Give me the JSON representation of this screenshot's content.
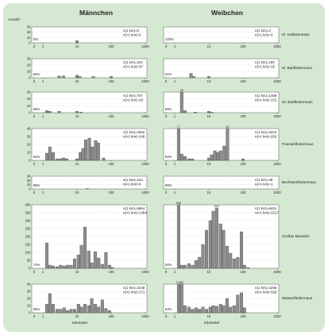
{
  "headers": {
    "male": "Männchen",
    "female": "Weibchen"
  },
  "ylabel": "Anzahl",
  "xlabel": "Kilometer",
  "chart_data": {
    "type": "bar",
    "xscale": "log",
    "xlim": [
      1,
      1000
    ],
    "xticks": [
      "0",
      "1",
      "10",
      "100",
      "1000"
    ],
    "species": [
      {
        "name": "Kl. Hufeisennase",
        "ylim": [
          0,
          30
        ],
        "yticks": [
          0,
          10,
          20,
          30
        ],
        "male": {
          "n1": "n(1 km)=0",
          "n2": "n(>1 km)=0",
          "zero_pct": "0%",
          "bars": [
            {
              "x": 10,
              "v": 4
            }
          ]
        },
        "female": {
          "n1": "n(1 km)=2",
          "n2": "n(>1 km)=0",
          "zero_pct": "100%",
          "bars": []
        }
      },
      {
        "name": "Kl. Bartfledermaus",
        "ylim": [
          0,
          30
        ],
        "yticks": [
          0,
          10,
          20,
          30
        ],
        "male": {
          "n1": "n(1 km)=222",
          "n2": "n(>1 km)=37",
          "zero_pct": "85%",
          "bars": [
            {
              "x": 3,
              "v": 3
            },
            {
              "x": 4,
              "v": 3
            },
            {
              "x": 10,
              "v": 4
            },
            {
              "x": 12,
              "v": 2
            },
            {
              "x": 30,
              "v": 2
            },
            {
              "x": 100,
              "v": 2
            }
          ]
        },
        "female": {
          "n1": "n(1 km)=180",
          "n2": "n(>1 km)=15",
          "zero_pct": "91%",
          "bars": [
            {
              "x": 3,
              "v": 7
            },
            {
              "x": 3.6,
              "v": 2
            },
            {
              "x": 10,
              "v": 2
            }
          ]
        }
      },
      {
        "name": "Gr. Bartfledermaus",
        "ylim": [
          0,
          30
        ],
        "yticks": [
          0,
          10,
          20,
          30
        ],
        "male": {
          "n1": "n(1 km)=707",
          "n2": "n(>1 km)=28",
          "zero_pct": "96%",
          "bars": [
            {
              "x": 1.3,
              "v": 3
            },
            {
              "x": 1.6,
              "v": 2
            },
            {
              "x": 3,
              "v": 2
            },
            {
              "x": 10,
              "v": 2
            },
            {
              "x": 13,
              "v": 1
            }
          ]
        },
        "female": {
          "n1": "n(1 km)=1458",
          "n2": "n(>1 km)=131",
          "zero_pct": "89%",
          "bars": [
            {
              "x": 1.6,
              "v": 30,
              "label": "35"
            },
            {
              "x": 2,
              "v": 3
            },
            {
              "x": 4,
              "v": 1
            },
            {
              "x": 10,
              "v": 2
            },
            {
              "x": 12,
              "v": 1
            }
          ]
        }
      },
      {
        "name": "Fransenfledermaus",
        "ylim": [
          0,
          40
        ],
        "yticks": [
          0,
          10,
          20,
          30,
          40
        ],
        "male": {
          "n1": "n(1 km)=2562",
          "n2": "n(>1 km)=140",
          "zero_pct": "94%",
          "bars": [
            {
              "x": 1.3,
              "v": 9
            },
            {
              "x": 1.6,
              "v": 17
            },
            {
              "x": 2,
              "v": 10
            },
            {
              "x": 2.6,
              "v": 2
            },
            {
              "x": 3.3,
              "v": 2
            },
            {
              "x": 4,
              "v": 3
            },
            {
              "x": 5,
              "v": 2
            },
            {
              "x": 10,
              "v": 2
            },
            {
              "x": 12.5,
              "v": 10
            },
            {
              "x": 15,
              "v": 15
            },
            {
              "x": 18,
              "v": 26
            },
            {
              "x": 23,
              "v": 28
            },
            {
              "x": 28,
              "v": 17
            },
            {
              "x": 35,
              "v": 25
            },
            {
              "x": 42,
              "v": 22
            },
            {
              "x": 60,
              "v": 3
            }
          ]
        },
        "female": {
          "n1": "n(1 km)=2313",
          "n2": "n(>1 km)=202",
          "zero_pct": "92%",
          "bars": [
            {
              "x": 1.3,
              "v": 40,
              "label": "77"
            },
            {
              "x": 1.6,
              "v": 8
            },
            {
              "x": 2,
              "v": 5
            },
            {
              "x": 2.6,
              "v": 2
            },
            {
              "x": 3.3,
              "v": 2
            },
            {
              "x": 10,
              "v": 3
            },
            {
              "x": 12,
              "v": 7
            },
            {
              "x": 15,
              "v": 12
            },
            {
              "x": 18,
              "v": 10
            },
            {
              "x": 22,
              "v": 12
            },
            {
              "x": 28,
              "v": 18
            },
            {
              "x": 35,
              "v": 40,
              "label": "43"
            },
            {
              "x": 100,
              "v": 2
            }
          ]
        }
      },
      {
        "name": "Bechsteinfledermaus",
        "ylim": [
          0,
          30
        ],
        "yticks": [
          0,
          10,
          20,
          30
        ],
        "male": {
          "n1": "n(1 km)=124",
          "n2": "n(>1 km)=6",
          "zero_pct": "95%",
          "bars": [
            {
              "x": 20,
              "v": 1
            }
          ]
        },
        "female": {
          "n1": "n(1 km)=48",
          "n2": "n(>1 km)=1",
          "zero_pct": "98%",
          "bars": []
        }
      },
      {
        "name": "Großes Mausohr",
        "ylim": [
          0,
          400
        ],
        "yticks": [
          0,
          50,
          100,
          150,
          200,
          250,
          300,
          350,
          400
        ],
        "male": {
          "n1": "n(1 km)=5664",
          "n2": "n(>1 km)=1454",
          "zero_pct": "74%",
          "bars": [
            {
              "x": 1.3,
              "v": 160
            },
            {
              "x": 1.6,
              "v": 20
            },
            {
              "x": 2,
              "v": 15
            },
            {
              "x": 2.6,
              "v": 10
            },
            {
              "x": 3.3,
              "v": 20
            },
            {
              "x": 4.2,
              "v": 15
            },
            {
              "x": 5.3,
              "v": 20
            },
            {
              "x": 6.7,
              "v": 20
            },
            {
              "x": 8.5,
              "v": 60
            },
            {
              "x": 11,
              "v": 85
            },
            {
              "x": 13.5,
              "v": 145
            },
            {
              "x": 17,
              "v": 260
            },
            {
              "x": 22,
              "v": 110
            },
            {
              "x": 27,
              "v": 35
            },
            {
              "x": 34,
              "v": 105
            },
            {
              "x": 43,
              "v": 65
            },
            {
              "x": 55,
              "v": 25
            },
            {
              "x": 70,
              "v": 100
            },
            {
              "x": 90,
              "v": 20
            },
            {
              "x": 110,
              "v": 5
            }
          ]
        },
        "female": {
          "n1": "n(1 km)=6424",
          "n2": "n(>1 km)=3217",
          "zero_pct": "50%",
          "bars": [
            {
              "x": 1.3,
              "v": 400,
              "label": "548"
            },
            {
              "x": 1.6,
              "v": 20
            },
            {
              "x": 2,
              "v": 20
            },
            {
              "x": 2.6,
              "v": 30
            },
            {
              "x": 3.3,
              "v": 20
            },
            {
              "x": 4.2,
              "v": 50
            },
            {
              "x": 5.3,
              "v": 70
            },
            {
              "x": 6.7,
              "v": 150
            },
            {
              "x": 8.5,
              "v": 240
            },
            {
              "x": 11,
              "v": 300
            },
            {
              "x": 13.5,
              "v": 360
            },
            {
              "x": 17,
              "v": 380,
              "label": "522"
            },
            {
              "x": 22,
              "v": 280
            },
            {
              "x": 27,
              "v": 240
            },
            {
              "x": 34,
              "v": 140
            },
            {
              "x": 43,
              "v": 95
            },
            {
              "x": 55,
              "v": 60
            },
            {
              "x": 70,
              "v": 70
            },
            {
              "x": 90,
              "v": 230
            },
            {
              "x": 110,
              "v": 20
            },
            {
              "x": 140,
              "v": 5
            }
          ]
        }
      },
      {
        "name": "Wasserfledermaus",
        "ylim": [
          0,
          40
        ],
        "yticks": [
          0,
          10,
          20,
          30,
          40
        ],
        "male": {
          "n1": "n(1 km)=3148",
          "n2": "n(>1 km)=171",
          "zero_pct": "95%",
          "bars": [
            {
              "x": 1.3,
              "v": 12
            },
            {
              "x": 1.6,
              "v": 27
            },
            {
              "x": 2,
              "v": 12
            },
            {
              "x": 2.6,
              "v": 5
            },
            {
              "x": 3.3,
              "v": 5
            },
            {
              "x": 4.2,
              "v": 7
            },
            {
              "x": 5.3,
              "v": 3
            },
            {
              "x": 6.7,
              "v": 5
            },
            {
              "x": 8.5,
              "v": 5
            },
            {
              "x": 11,
              "v": 12
            },
            {
              "x": 13.5,
              "v": 8
            },
            {
              "x": 17,
              "v": 12
            },
            {
              "x": 22,
              "v": 10
            },
            {
              "x": 27,
              "v": 20
            },
            {
              "x": 34,
              "v": 12
            },
            {
              "x": 43,
              "v": 8
            },
            {
              "x": 55,
              "v": 18
            },
            {
              "x": 70,
              "v": 6
            },
            {
              "x": 90,
              "v": 3
            }
          ]
        },
        "female": {
          "n1": "n(1 km)=4256",
          "n2": "n(>1 km)=326",
          "zero_pct": "93%",
          "bars": [
            {
              "x": 1.3,
              "v": 40,
              "label": "131"
            },
            {
              "x": 1.6,
              "v": 40,
              "label": "53"
            },
            {
              "x": 2,
              "v": 10
            },
            {
              "x": 2.6,
              "v": 8
            },
            {
              "x": 3.3,
              "v": 5
            },
            {
              "x": 4.2,
              "v": 7
            },
            {
              "x": 5.3,
              "v": 5
            },
            {
              "x": 6.7,
              "v": 8
            },
            {
              "x": 8.5,
              "v": 5
            },
            {
              "x": 11,
              "v": 8
            },
            {
              "x": 13.5,
              "v": 10
            },
            {
              "x": 17,
              "v": 9
            },
            {
              "x": 22,
              "v": 12
            },
            {
              "x": 27,
              "v": 10
            },
            {
              "x": 34,
              "v": 20
            },
            {
              "x": 43,
              "v": 8
            },
            {
              "x": 55,
              "v": 10
            },
            {
              "x": 70,
              "v": 25
            },
            {
              "x": 90,
              "v": 28
            },
            {
              "x": 110,
              "v": 7
            }
          ]
        }
      }
    ]
  }
}
